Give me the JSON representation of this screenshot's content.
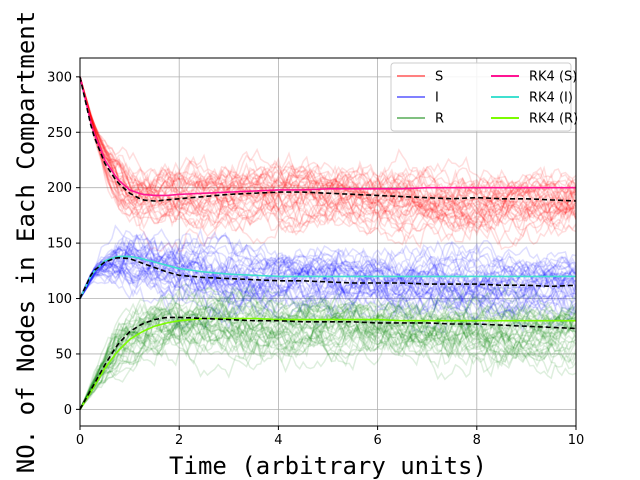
{
  "chart_data": {
    "type": "line",
    "title": "",
    "xlabel": "Time (arbitrary units)",
    "ylabel": "NO. of Nodes in Each Compartment",
    "xlim": [
      0,
      10
    ],
    "ylim": [
      -15,
      317
    ],
    "xticks": [
      0,
      2,
      4,
      6,
      8,
      10
    ],
    "yticks": [
      0,
      50,
      100,
      150,
      200,
      250,
      300
    ],
    "grid": true,
    "legend_position": "top-right",
    "legend_columns": 2,
    "x": [
      0,
      0.25,
      0.5,
      0.75,
      1,
      1.25,
      1.5,
      1.75,
      2,
      2.5,
      3,
      3.5,
      4,
      4.5,
      5,
      5.5,
      6,
      6.5,
      7,
      7.5,
      8,
      8.5,
      9,
      9.5,
      10
    ],
    "series": [
      {
        "name": "S",
        "color": "#ff8080",
        "style": "stochastic",
        "base": [
          300,
          258,
          229,
          210,
          199,
          196,
          195,
          194,
          194,
          195,
          196,
          196,
          197,
          196,
          195,
          194,
          193,
          192,
          191,
          190,
          190,
          189,
          189,
          188,
          188
        ]
      },
      {
        "name": "I",
        "color": "#8080ff",
        "style": "stochastic",
        "base": [
          100,
          122,
          131,
          136,
          136,
          134,
          131,
          128,
          126,
          122,
          120,
          119,
          118,
          117,
          117,
          116,
          116,
          115,
          115,
          114,
          114,
          113,
          113,
          112,
          112
        ]
      },
      {
        "name": "R",
        "color": "#80c080",
        "style": "stochastic",
        "base": [
          0,
          20,
          40,
          56,
          66,
          73,
          78,
          80,
          81,
          81,
          80,
          79,
          79,
          79,
          78,
          78,
          78,
          77,
          77,
          76,
          76,
          75,
          75,
          74,
          74
        ]
      },
      {
        "name": "RK4 (S)",
        "color": "#ff1493",
        "style": "solid",
        "values": [
          300,
          253,
          225,
          208,
          198,
          194,
          193,
          193,
          194,
          195,
          196,
          197,
          198,
          198,
          199,
          199,
          199,
          199,
          200,
          200,
          200,
          200,
          200,
          200,
          200
        ]
      },
      {
        "name": "RK4 (I)",
        "color": "#40e0d0",
        "style": "solid",
        "values": [
          100,
          123,
          134,
          138,
          138,
          136,
          133,
          130,
          127,
          124,
          122,
          121,
          120,
          120,
          120,
          120,
          120,
          120,
          120,
          120,
          120,
          120,
          120,
          120,
          120
        ]
      },
      {
        "name": "RK4 (R)",
        "color": "#7cfc00",
        "style": "solid",
        "values": [
          0,
          18,
          37,
          52,
          63,
          70,
          75,
          78,
          80,
          82,
          82,
          82,
          81,
          81,
          81,
          81,
          81,
          80,
          80,
          80,
          80,
          80,
          80,
          80,
          80
        ]
      }
    ],
    "mean_lines": [
      {
        "color": "#000000",
        "dash": true,
        "values": [
          300,
          250,
          222,
          205,
          195,
          189,
          188,
          189,
          190,
          192,
          194,
          195,
          196,
          196,
          195,
          194,
          193,
          192,
          191,
          190,
          191,
          190,
          190,
          189,
          188
        ]
      },
      {
        "color": "#000000",
        "dash": true,
        "values": [
          100,
          124,
          133,
          137,
          136,
          132,
          128,
          124,
          121,
          119,
          118,
          117,
          116,
          116,
          115,
          114,
          114,
          114,
          113,
          113,
          113,
          112,
          112,
          111,
          112
        ]
      },
      {
        "color": "#000000",
        "dash": true,
        "values": [
          0,
          20,
          40,
          58,
          70,
          77,
          81,
          83,
          83,
          82,
          81,
          80,
          80,
          79,
          79,
          79,
          78,
          78,
          78,
          77,
          77,
          76,
          75,
          74,
          73
        ]
      }
    ],
    "stochastic_run_count": 40
  }
}
